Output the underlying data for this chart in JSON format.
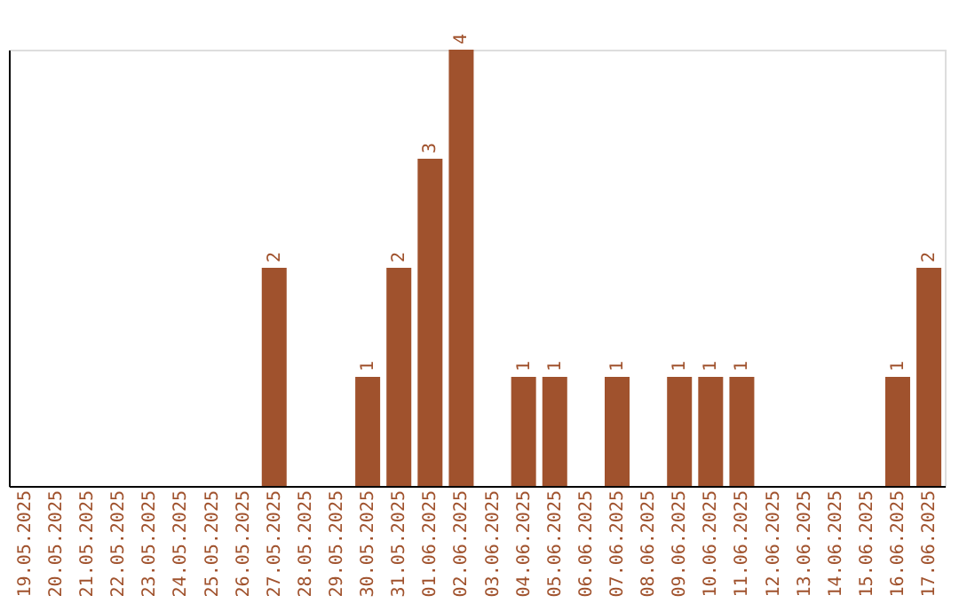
{
  "chart_data": {
    "type": "bar",
    "categories": [
      "19.05.2025",
      "20.05.2025",
      "21.05.2025",
      "22.05.2025",
      "23.05.2025",
      "24.05.2025",
      "25.05.2025",
      "26.05.2025",
      "27.05.2025",
      "28.05.2025",
      "29.05.2025",
      "30.05.2025",
      "31.05.2025",
      "01.06.2025",
      "02.06.2025",
      "03.06.2025",
      "04.06.2025",
      "05.06.2025",
      "06.06.2025",
      "07.06.2025",
      "08.06.2025",
      "09.06.2025",
      "10.06.2025",
      "11.06.2025",
      "12.06.2025",
      "13.06.2025",
      "14.06.2025",
      "15.06.2025",
      "16.06.2025",
      "17.06.2025"
    ],
    "values": [
      0,
      0,
      0,
      0,
      0,
      0,
      0,
      0,
      2,
      0,
      0,
      1,
      2,
      3,
      4,
      0,
      1,
      1,
      0,
      1,
      0,
      1,
      1,
      1,
      0,
      0,
      0,
      0,
      1,
      2
    ],
    "value_labels": [
      null,
      null,
      null,
      null,
      null,
      null,
      null,
      null,
      "2",
      null,
      null,
      "1",
      "2",
      "3",
      "4",
      null,
      "1",
      "1",
      null,
      "1",
      null,
      "1",
      "1",
      "1",
      null,
      null,
      null,
      null,
      "1",
      "2"
    ],
    "color": "#a0522d",
    "ylim": [
      0,
      4
    ],
    "tick_labels": "x",
    "grid": false
  }
}
